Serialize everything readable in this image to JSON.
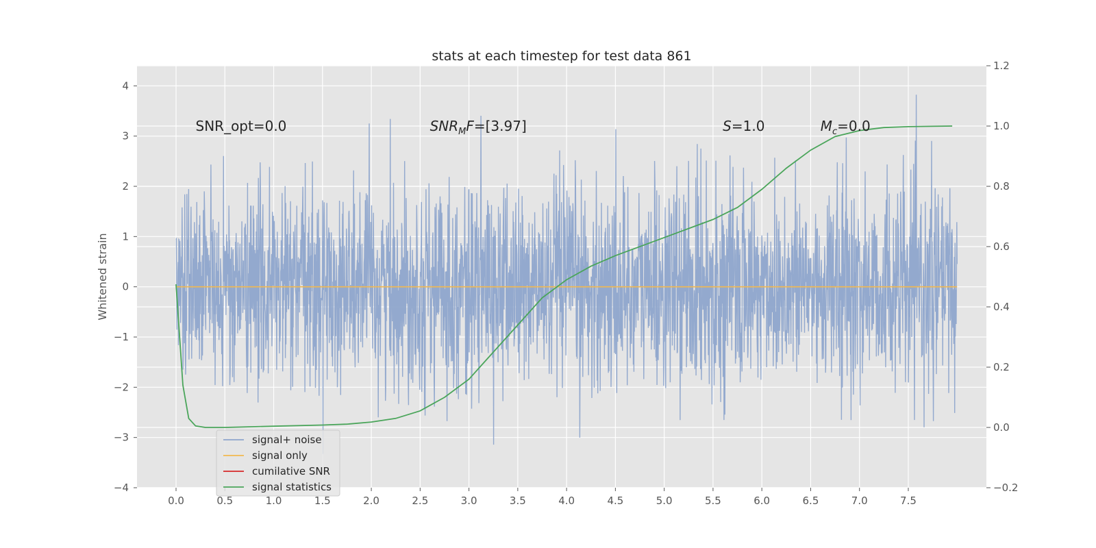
{
  "chart_data": {
    "type": "line",
    "title": "stats at each timestep for test data 861",
    "xlabel": "",
    "ylabel": "Whitened strain",
    "y2label": "",
    "xlim": [
      -0.4,
      8.3
    ],
    "ylim": [
      -4,
      4.4
    ],
    "y2lim": [
      -0.2,
      1.2
    ],
    "x_ticks": [
      0.0,
      0.5,
      1.0,
      1.5,
      2.0,
      2.5,
      3.0,
      3.5,
      4.0,
      4.5,
      5.0,
      5.5,
      6.0,
      6.5,
      7.0,
      7.5
    ],
    "x_tick_labels": [
      "0.0",
      "0.5",
      "1.0",
      "1.5",
      "2.0",
      "2.5",
      "3.0",
      "3.5",
      "4.0",
      "4.5",
      "5.0",
      "5.5",
      "6.0",
      "6.5",
      "7.0",
      "7.5"
    ],
    "y_ticks": [
      -4,
      -3,
      -2,
      -1,
      0,
      1,
      2,
      3,
      4
    ],
    "y_tick_labels": [
      "−4",
      "−3",
      "−2",
      "−1",
      "0",
      "1",
      "2",
      "3",
      "4"
    ],
    "y2_ticks": [
      -0.2,
      0.0,
      0.2,
      0.4,
      0.6,
      0.8,
      1.0,
      1.2
    ],
    "y2_tick_labels": [
      "−0.2",
      "0.0",
      "0.2",
      "0.4",
      "0.6",
      "0.8",
      "1.0",
      "1.2"
    ],
    "grid": true,
    "legend_position": "lower-left",
    "annotations": [
      {
        "text": "SNR_opt=0.0",
        "x": 0.2,
        "y": 3.2
      },
      {
        "text": "SNR_MF=[3.97]",
        "x": 2.6,
        "y": 3.2
      },
      {
        "text": "S=1.0",
        "x": 5.6,
        "y": 3.2
      },
      {
        "text": "M_c=0.0",
        "x": 6.6,
        "y": 3.2
      }
    ],
    "series": [
      {
        "name": "signal+ noise",
        "axis": "left",
        "color": "#8ea5cc",
        "noise_sample": {
          "x_start": 0.0,
          "x_end": 8.0,
          "typical_range": [
            -2.0,
            2.0
          ],
          "extreme_min": -3.6,
          "extreme_max": 4.0
        }
      },
      {
        "name": "signal only",
        "axis": "left",
        "color": "#f2b94f",
        "x": [
          0.0,
          8.0
        ],
        "y": [
          0.0,
          0.0
        ]
      },
      {
        "name": "cumilative SNR",
        "axis": "left",
        "color": "#d62728",
        "x": [],
        "y": []
      },
      {
        "name": "signal statistics",
        "axis": "right",
        "color": "#4aa55a",
        "x": [
          0.0,
          0.07,
          0.13,
          0.2,
          0.3,
          0.5,
          1.0,
          1.5,
          1.75,
          2.0,
          2.25,
          2.5,
          2.75,
          3.0,
          3.25,
          3.5,
          3.75,
          4.0,
          4.25,
          4.5,
          5.0,
          5.5,
          5.75,
          6.0,
          6.25,
          6.5,
          6.75,
          7.0,
          7.25,
          7.5,
          7.75,
          7.95
        ],
        "y": [
          0.475,
          0.14,
          0.03,
          0.005,
          0.0,
          0.0,
          0.004,
          0.008,
          0.011,
          0.018,
          0.03,
          0.055,
          0.1,
          0.16,
          0.25,
          0.34,
          0.43,
          0.49,
          0.535,
          0.57,
          0.63,
          0.69,
          0.73,
          0.79,
          0.86,
          0.92,
          0.965,
          0.985,
          0.995,
          0.998,
          0.999,
          1.0
        ]
      }
    ]
  }
}
